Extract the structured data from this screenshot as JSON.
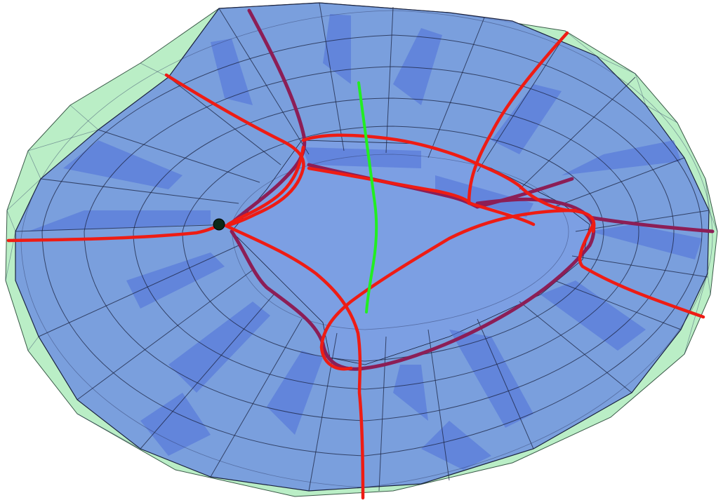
{
  "scene": {
    "type": "3d-mesh-visualization",
    "surfaces": [
      {
        "name": "outer-hull",
        "color": "#b3ecc0"
      },
      {
        "name": "inner-torus-surface",
        "color": "#6f90e0"
      },
      {
        "name": "face-strips",
        "color": "#4f6fd8"
      }
    ],
    "mesh_edge_color": "#1b2340",
    "curves": [
      {
        "name": "red-curves",
        "color": "#ee1c14"
      },
      {
        "name": "maroon-curves",
        "color": "#8c1e56"
      },
      {
        "name": "green-curve",
        "color": "#22ee22"
      }
    ],
    "marker": {
      "name": "base-point",
      "color": "#0b2a18"
    }
  }
}
